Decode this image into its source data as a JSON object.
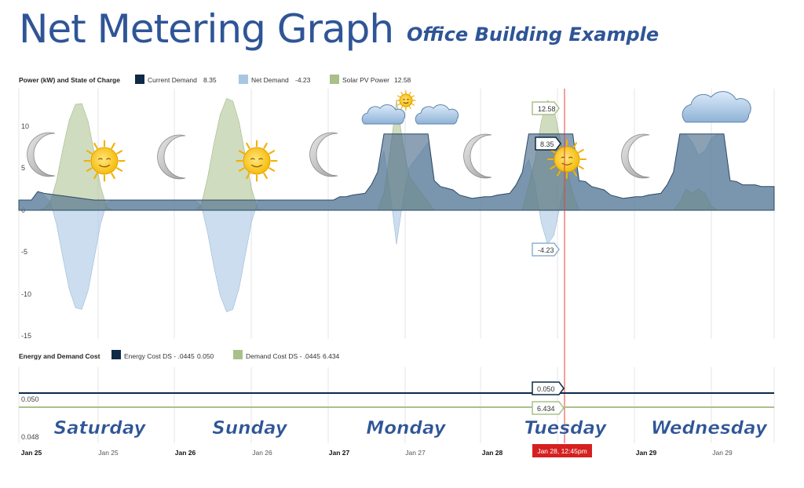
{
  "title": "Net Metering Graph",
  "subtitle": "Office Building Example",
  "chart_data": [
    {
      "type": "area",
      "title": "Power (kW) and State of Charge",
      "ylim": [
        -15,
        15
      ],
      "y_ticks": [
        "10",
        "5",
        "0",
        "-5",
        "-10",
        "-15"
      ],
      "legend": [
        {
          "name": "Current Demand",
          "value": "8.35",
          "color": "#0e2a47"
        },
        {
          "name": "Net Demand",
          "value": "-4.23",
          "color": "#a8c6e2"
        },
        {
          "name": "Solar PV Power",
          "value": "12.58",
          "color": "#a9c08a"
        }
      ],
      "tooltips": {
        "solar": "12.58",
        "demand": "8.35",
        "net": "-4.23"
      },
      "x": [
        0,
        2,
        3,
        4,
        5,
        6,
        7,
        8,
        9,
        10,
        11,
        12,
        13,
        14,
        15,
        16,
        17,
        18,
        19,
        20,
        21,
        22,
        23,
        24,
        26,
        27,
        28,
        29,
        30,
        31,
        32,
        33,
        34,
        35,
        36,
        37,
        38,
        39,
        40,
        41,
        42,
        43,
        44,
        45,
        46,
        47,
        48,
        50,
        51,
        52,
        53,
        54,
        55,
        56,
        57,
        58,
        59,
        60,
        61,
        62,
        63,
        64,
        65,
        66,
        67,
        68,
        69,
        70,
        71,
        72,
        74,
        75,
        76,
        77,
        78,
        79,
        80,
        81,
        82,
        83,
        84,
        85,
        86,
        87,
        88,
        89,
        90,
        91,
        92,
        93,
        94,
        95,
        96,
        98,
        99,
        100,
        101,
        102,
        103,
        104,
        105,
        106,
        107,
        108,
        109,
        110,
        111,
        112,
        113,
        114,
        115,
        116,
        117,
        118,
        119,
        120
      ],
      "series": [
        {
          "name": "Current Demand",
          "values": [
            1.2,
            1.2,
            2.2,
            2.0,
            1.9,
            1.8,
            1.7,
            1.6,
            1.5,
            1.4,
            1.3,
            1.2,
            1.2,
            1.2,
            1.2,
            1.2,
            1.2,
            1.2,
            1.2,
            1.2,
            1.2,
            1.2,
            1.2,
            1.2,
            1.2,
            1.2,
            1.2,
            1.2,
            1.2,
            1.2,
            1.2,
            1.2,
            1.2,
            1.2,
            1.2,
            1.2,
            1.2,
            1.2,
            1.2,
            1.2,
            1.2,
            1.2,
            1.2,
            1.2,
            1.2,
            1.2,
            1.2,
            1.2,
            1.6,
            1.6,
            1.8,
            1.9,
            2.0,
            3.0,
            4.5,
            9.0,
            9.0,
            9.0,
            9.0,
            9.0,
            9.0,
            9.0,
            9.0,
            3.5,
            2.8,
            2.6,
            2.4,
            1.8,
            1.6,
            1.4,
            1.6,
            1.6,
            1.8,
            1.9,
            2.0,
            3.0,
            4.5,
            9.0,
            9.0,
            9.0,
            9.0,
            9.0,
            9.0,
            9.0,
            9.0,
            3.5,
            3.4,
            2.8,
            2.6,
            2.4,
            1.8,
            1.6,
            1.4,
            1.6,
            1.6,
            1.8,
            1.9,
            2.0,
            3.0,
            4.5,
            9.0,
            9.0,
            9.0,
            9.0,
            9.0,
            9.0,
            9.0,
            9.0,
            3.5,
            3.4,
            3.0,
            3.0,
            3.0,
            2.8,
            2.8,
            2.8
          ]
        },
        {
          "name": "Net Demand",
          "values": [
            1.2,
            1.2,
            2.2,
            1.8,
            1.0,
            -1.7,
            -5.6,
            -9.3,
            -11.5,
            -11.7,
            -9.5,
            -5.6,
            -1.6,
            0.9,
            1.2,
            1.2,
            1.2,
            1.2,
            1.2,
            1.2,
            1.2,
            1.2,
            1.2,
            1.2,
            1.2,
            1.2,
            1.2,
            0.5,
            -2.7,
            -6.7,
            -10.1,
            -12.0,
            -11.7,
            -9.2,
            -5.2,
            -1.3,
            1.1,
            1.2,
            1.2,
            1.2,
            1.2,
            1.2,
            1.2,
            1.2,
            1.2,
            1.2,
            1.2,
            1.2,
            1.6,
            1.6,
            1.8,
            1.9,
            2.0,
            3.0,
            4.5,
            7.0,
            2.0,
            -4.0,
            1.0,
            5.0,
            6.0,
            7.0,
            8.0,
            3.5,
            2.8,
            2.6,
            2.4,
            1.8,
            1.6,
            1.4,
            1.6,
            1.6,
            1.8,
            1.9,
            2.0,
            3.0,
            4.5,
            6.0,
            3.0,
            -1.5,
            -4.0,
            -3.0,
            0.5,
            4.0,
            7.0,
            3.5,
            3.4,
            2.8,
            2.6,
            2.4,
            1.8,
            1.6,
            1.4,
            1.6,
            1.6,
            1.8,
            1.9,
            2.0,
            3.0,
            4.5,
            9.0,
            9.0,
            8.0,
            6.5,
            7.0,
            8.5,
            9.0,
            9.0,
            3.5,
            3.4,
            3.0,
            3.0,
            3.0,
            2.8,
            2.8,
            2.8
          ]
        },
        {
          "name": "Solar PV Power",
          "values": [
            0,
            0,
            0,
            0.2,
            1.0,
            3.5,
            7.3,
            10.6,
            12.5,
            12.6,
            10.5,
            6.8,
            2.8,
            0.3,
            0,
            0,
            0,
            0,
            0,
            0,
            0,
            0,
            0,
            0,
            0,
            0,
            0,
            0.7,
            3.9,
            7.9,
            11.3,
            13.2,
            12.9,
            10.4,
            6.4,
            2.5,
            0.1,
            0,
            0,
            0,
            0,
            0,
            0,
            0,
            0,
            0,
            0,
            0,
            0,
            0,
            0,
            0,
            0,
            0,
            0,
            2.0,
            7.0,
            13.0,
            8.0,
            4.0,
            3.0,
            2.0,
            1.0,
            0,
            0,
            0,
            0,
            0,
            0,
            0,
            0,
            0,
            0,
            0,
            0,
            0,
            0,
            3.0,
            6.0,
            10.5,
            13.0,
            12.0,
            8.5,
            5.0,
            2.0,
            0,
            0,
            0,
            0,
            0,
            0,
            0,
            0,
            0,
            0,
            0,
            0,
            0,
            0,
            0,
            1.0,
            2.5,
            2.0,
            2.5,
            2.0,
            0.5,
            0,
            0,
            0,
            0,
            0,
            0,
            0,
            0,
            0,
            0
          ]
        }
      ]
    },
    {
      "type": "line",
      "title": "Energy and Demand Cost",
      "y_ticks": [
        "0.050",
        "0.048"
      ],
      "legend": [
        {
          "name": "Energy Cost DS - .0445",
          "value": "0.050",
          "color": "#0e2a47"
        },
        {
          "name": "Demand Cost DS - .0445",
          "value": "6.434",
          "color": "#a9c08a"
        }
      ],
      "tooltips": {
        "energy": "0.050",
        "demand": "6.434"
      }
    }
  ],
  "days": [
    "Saturday",
    "Sunday",
    "Monday",
    "Tuesday",
    "Wednesday"
  ],
  "x_axis": {
    "date_labels": [
      "Jan 25",
      "Jan 25",
      "Jan 26",
      "Jan 26",
      "Jan 27",
      "Jan 27",
      "Jan 28",
      "Jan 29",
      "Jan 29"
    ],
    "cursor_label": "Jan 28, 12:45pm"
  },
  "icons": [
    "moon-icon",
    "sun-icon",
    "cloud-icon"
  ],
  "colors": {
    "title": "#2f5597",
    "demand": "#0e2a47",
    "demand_fill": "#4f6f8c",
    "net": "#a8c6e2",
    "solar": "#a9c08a",
    "cursor": "#e0403a",
    "cursor_label_bg": "#d62020"
  }
}
